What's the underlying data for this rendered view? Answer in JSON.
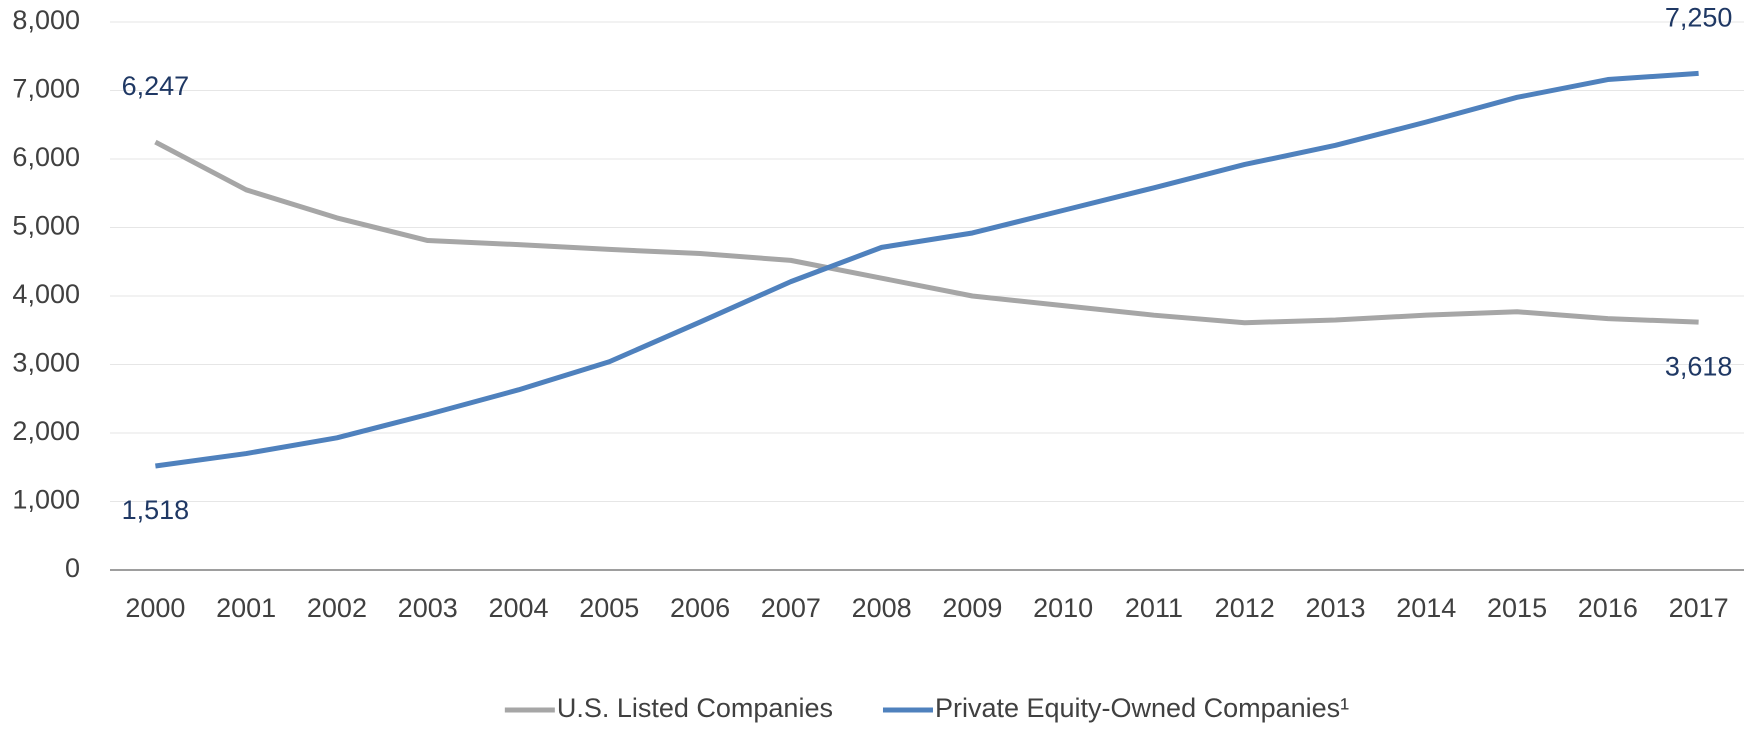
{
  "chart_data": {
    "type": "line",
    "categories": [
      "2000",
      "2001",
      "2002",
      "2003",
      "2004",
      "2005",
      "2006",
      "2007",
      "2008",
      "2009",
      "2010",
      "2011",
      "2012",
      "2013",
      "2014",
      "2015",
      "2016",
      "2017"
    ],
    "series": [
      {
        "name": "U.S. Listed Companies",
        "color": "#a6a6a6",
        "values": [
          6247,
          5550,
          5140,
          4810,
          4750,
          4680,
          4620,
          4520,
          4260,
          4000,
          3860,
          3720,
          3610,
          3650,
          3720,
          3770,
          3670,
          3618
        ],
        "value_labels": [
          "6,247",
          null,
          null,
          null,
          null,
          null,
          null,
          null,
          null,
          null,
          null,
          null,
          null,
          null,
          null,
          null,
          null,
          "3,618"
        ]
      },
      {
        "name": "Private Equity-Owned Companies¹",
        "color": "#4f81bd",
        "values": [
          1518,
          1700,
          1930,
          2270,
          2630,
          3040,
          3620,
          4210,
          4710,
          4920,
          5250,
          5580,
          5920,
          6200,
          6540,
          6900,
          7160,
          7250
        ],
        "value_labels": [
          "1,518",
          null,
          null,
          null,
          null,
          null,
          null,
          null,
          null,
          null,
          null,
          null,
          null,
          null,
          null,
          null,
          null,
          "7,250"
        ]
      }
    ],
    "ylim": [
      0,
      8000
    ],
    "yticks": [
      0,
      {
        "value": 1000,
        "label": "1,000"
      },
      {
        "value": 2000,
        "label": "2,000"
      },
      {
        "value": 3000,
        "label": "3,000"
      },
      {
        "value": 4000,
        "label": "4,000"
      },
      {
        "value": 5000,
        "label": "5,000"
      },
      {
        "value": 6000,
        "label": "6,000"
      },
      {
        "value": 7000,
        "label": "7,000"
      },
      {
        "value": 8000,
        "label": "8,000"
      }
    ],
    "grid": true,
    "legend": "bottom"
  }
}
